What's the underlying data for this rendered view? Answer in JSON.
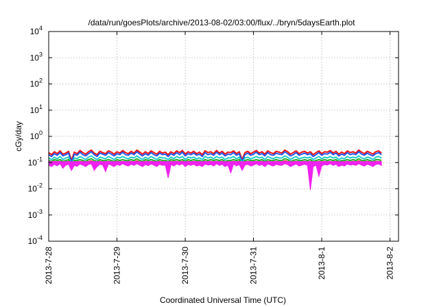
{
  "chart_data": {
    "type": "area",
    "title": "/data/run/goesPlots/archive/2013-08-02/03:00/flux/../bryn/5daysEarth.plot",
    "xlabel": "Coordinated Universal Time (UTC)",
    "ylabel": "cGy/day",
    "y_scale": "log",
    "ylim": [
      0.0001,
      10000
    ],
    "xlim": [
      "2013-07-28T00:00",
      "2013-08-02T03:00"
    ],
    "y_ticks": [
      {
        "value": 0.0001,
        "base": "10",
        "exp": "-4"
      },
      {
        "value": 0.001,
        "base": "10",
        "exp": "-3"
      },
      {
        "value": 0.01,
        "base": "10",
        "exp": "-2"
      },
      {
        "value": 0.1,
        "base": "10",
        "exp": "-1"
      },
      {
        "value": 1,
        "base": "10",
        "exp": "0"
      },
      {
        "value": 10,
        "base": "10",
        "exp": "1"
      },
      {
        "value": 100,
        "base": "10",
        "exp": "2"
      },
      {
        "value": 1000,
        "base": "10",
        "exp": "3"
      },
      {
        "value": 10000,
        "base": "10",
        "exp": "4"
      }
    ],
    "x_ticks": [
      {
        "date": "2013-07-28T00:00",
        "label": "2013-7-28"
      },
      {
        "date": "2013-07-29T00:00",
        "label": "2013-7-29"
      },
      {
        "date": "2013-07-30T00:00",
        "label": "2013-7-30"
      },
      {
        "date": "2013-07-31T00:00",
        "label": "2013-7-31"
      },
      {
        "date": "2013-08-01T00:00",
        "label": "2013-8-1"
      },
      {
        "date": "2013-08-02T00:00",
        "label": "2013-8-2"
      }
    ],
    "grid": true,
    "legend": "none",
    "sample_interval_hours": 1,
    "series": [
      {
        "color": "#ee1111",
        "fill": false,
        "values": [
          0.24,
          0.2,
          0.26,
          0.22,
          0.28,
          0.21,
          0.23,
          0.27,
          0.12,
          0.25,
          0.22,
          0.29,
          0.24,
          0.21,
          0.26,
          0.3,
          0.23,
          0.2,
          0.27,
          0.24,
          0.22,
          0.28,
          0.25,
          0.21,
          0.26,
          0.23,
          0.29,
          0.24,
          0.22,
          0.27,
          0.23,
          0.3,
          0.25,
          0.21,
          0.26,
          0.22,
          0.28,
          0.24,
          0.21,
          0.27,
          0.23,
          0.25,
          0.2,
          0.26,
          0.22,
          0.28,
          0.24,
          0.29,
          0.21,
          0.26,
          0.23,
          0.27,
          0.22,
          0.25,
          0.2,
          0.28,
          0.24,
          0.26,
          0.22,
          0.29,
          0.23,
          0.27,
          0.21,
          0.25,
          0.24,
          0.28,
          0.22,
          0.26,
          0.13,
          0.24,
          0.27,
          0.22,
          0.25,
          0.29,
          0.23,
          0.26,
          0.21,
          0.28,
          0.24,
          0.22,
          0.27,
          0.25,
          0.23,
          0.3,
          0.26,
          0.21,
          0.24,
          0.28,
          0.22,
          0.25,
          0.27,
          0.23,
          0.26,
          0.2,
          0.24,
          0.28,
          0.22,
          0.26,
          0.25,
          0.29,
          0.23,
          0.27,
          0.21,
          0.25,
          0.22,
          0.28,
          0.24,
          0.26,
          0.23,
          0.3,
          0.25,
          0.22,
          0.27,
          0.24,
          0.21,
          0.26,
          0.28,
          0.23
        ]
      },
      {
        "color": "#2255ee",
        "fill": false,
        "values": [
          0.2,
          0.17,
          0.22,
          0.19,
          0.24,
          0.18,
          0.2,
          0.23,
          0.1,
          0.21,
          0.19,
          0.25,
          0.2,
          0.18,
          0.22,
          0.26,
          0.2,
          0.17,
          0.23,
          0.21,
          0.19,
          0.24,
          0.21,
          0.18,
          0.22,
          0.2,
          0.25,
          0.2,
          0.19,
          0.23,
          0.2,
          0.26,
          0.21,
          0.18,
          0.22,
          0.19,
          0.24,
          0.2,
          0.18,
          0.23,
          0.2,
          0.21,
          0.17,
          0.22,
          0.19,
          0.24,
          0.2,
          0.25,
          0.18,
          0.22,
          0.2,
          0.23,
          0.19,
          0.21,
          0.17,
          0.24,
          0.2,
          0.22,
          0.19,
          0.25,
          0.2,
          0.23,
          0.18,
          0.21,
          0.2,
          0.24,
          0.19,
          0.22,
          0.11,
          0.2,
          0.23,
          0.19,
          0.21,
          0.25,
          0.2,
          0.22,
          0.18,
          0.24,
          0.2,
          0.19,
          0.23,
          0.21,
          0.2,
          0.26,
          0.22,
          0.18,
          0.2,
          0.24,
          0.19,
          0.21,
          0.23,
          0.2,
          0.22,
          0.17,
          0.2,
          0.24,
          0.19,
          0.22,
          0.21,
          0.25,
          0.2,
          0.23,
          0.18,
          0.21,
          0.19,
          0.24,
          0.2,
          0.22,
          0.2,
          0.26,
          0.21,
          0.19,
          0.23,
          0.2,
          0.18,
          0.22,
          0.24,
          0.2
        ]
      },
      {
        "color": "#22cccc",
        "fill": false,
        "values": [
          0.15,
          0.13,
          0.16,
          0.14,
          0.17,
          0.13,
          0.15,
          0.16,
          0.09,
          0.15,
          0.14,
          0.17,
          0.15,
          0.13,
          0.16,
          0.18,
          0.15,
          0.13,
          0.16,
          0.15,
          0.14,
          0.17,
          0.15,
          0.13,
          0.16,
          0.15,
          0.17,
          0.15,
          0.14,
          0.16,
          0.15,
          0.18,
          0.15,
          0.13,
          0.16,
          0.14,
          0.17,
          0.15,
          0.13,
          0.16,
          0.15,
          0.15,
          0.13,
          0.16,
          0.14,
          0.17,
          0.15,
          0.17,
          0.13,
          0.16,
          0.15,
          0.16,
          0.14,
          0.15,
          0.13,
          0.17,
          0.15,
          0.16,
          0.14,
          0.17,
          0.15,
          0.16,
          0.13,
          0.15,
          0.15,
          0.17,
          0.14,
          0.16,
          0.1,
          0.15,
          0.16,
          0.14,
          0.15,
          0.17,
          0.15,
          0.16,
          0.13,
          0.17,
          0.15,
          0.14,
          0.16,
          0.15,
          0.15,
          0.18,
          0.16,
          0.13,
          0.15,
          0.17,
          0.14,
          0.15,
          0.16,
          0.15,
          0.16,
          0.13,
          0.15,
          0.17,
          0.14,
          0.16,
          0.15,
          0.17,
          0.15,
          0.16,
          0.13,
          0.15,
          0.14,
          0.17,
          0.15,
          0.16,
          0.15,
          0.18,
          0.15,
          0.14,
          0.16,
          0.15,
          0.13,
          0.16,
          0.17,
          0.15
        ]
      },
      {
        "color": "#22aa22",
        "fill": false,
        "values": [
          0.12,
          0.11,
          0.13,
          0.12,
          0.13,
          0.11,
          0.12,
          0.13,
          0.08,
          0.12,
          0.12,
          0.13,
          0.12,
          0.11,
          0.13,
          0.14,
          0.12,
          0.11,
          0.13,
          0.12,
          0.12,
          0.13,
          0.12,
          0.11,
          0.13,
          0.12,
          0.13,
          0.12,
          0.12,
          0.13,
          0.12,
          0.14,
          0.12,
          0.11,
          0.13,
          0.12,
          0.13,
          0.12,
          0.11,
          0.13,
          0.12,
          0.12,
          0.11,
          0.13,
          0.12,
          0.13,
          0.12,
          0.13,
          0.11,
          0.13,
          0.12,
          0.13,
          0.12,
          0.12,
          0.11,
          0.13,
          0.12,
          0.13,
          0.12,
          0.13,
          0.12,
          0.13,
          0.11,
          0.12,
          0.12,
          0.13,
          0.12,
          0.13,
          0.09,
          0.12,
          0.13,
          0.12,
          0.12,
          0.13,
          0.12,
          0.13,
          0.11,
          0.13,
          0.12,
          0.12,
          0.13,
          0.12,
          0.12,
          0.14,
          0.13,
          0.11,
          0.12,
          0.13,
          0.12,
          0.12,
          0.13,
          0.12,
          0.13,
          0.11,
          0.12,
          0.13,
          0.12,
          0.13,
          0.12,
          0.13,
          0.12,
          0.13,
          0.11,
          0.12,
          0.12,
          0.13,
          0.12,
          0.13,
          0.12,
          0.14,
          0.12,
          0.12,
          0.13,
          0.12,
          0.11,
          0.13,
          0.13,
          0.12
        ]
      },
      {
        "color": "#d03030",
        "fill": false,
        "values": [
          0.105,
          0.1,
          0.11,
          0.105,
          0.11,
          0.1,
          0.105,
          0.11,
          0.075,
          0.105,
          0.105,
          0.11,
          0.105,
          0.1,
          0.11,
          0.115,
          0.105,
          0.1,
          0.11,
          0.105,
          0.105,
          0.11,
          0.105,
          0.1,
          0.11,
          0.105,
          0.11,
          0.105,
          0.105,
          0.11,
          0.105,
          0.115,
          0.105,
          0.1,
          0.11,
          0.105,
          0.11,
          0.105,
          0.1,
          0.11,
          0.105,
          0.105,
          0.1,
          0.11,
          0.105,
          0.11,
          0.105,
          0.11,
          0.1,
          0.11,
          0.105,
          0.11,
          0.105,
          0.105,
          0.1,
          0.11,
          0.105,
          0.11,
          0.105,
          0.11,
          0.105,
          0.11,
          0.1,
          0.105,
          0.105,
          0.11,
          0.105,
          0.11,
          0.08,
          0.105,
          0.11,
          0.105,
          0.105,
          0.11,
          0.105,
          0.11,
          0.1,
          0.11,
          0.105,
          0.105,
          0.11,
          0.105,
          0.105,
          0.115,
          0.11,
          0.1,
          0.105,
          0.11,
          0.105,
          0.105,
          0.11,
          0.105,
          0.11,
          0.1,
          0.105,
          0.11,
          0.105,
          0.11,
          0.105,
          0.11,
          0.105,
          0.11,
          0.1,
          0.105,
          0.105,
          0.11,
          0.105,
          0.11,
          0.105,
          0.115,
          0.105,
          0.105,
          0.11,
          0.105,
          0.1,
          0.11,
          0.11,
          0.105
        ]
      },
      {
        "color": "#ee22ee",
        "fill": true,
        "values": [
          0.08,
          0.07,
          0.085,
          0.075,
          0.09,
          0.06,
          0.08,
          0.085,
          0.05,
          0.078,
          0.072,
          0.088,
          0.08,
          0.07,
          0.084,
          0.09,
          0.05,
          0.07,
          0.085,
          0.08,
          0.045,
          0.088,
          0.08,
          0.07,
          0.084,
          0.078,
          0.09,
          0.08,
          0.074,
          0.086,
          0.078,
          0.09,
          0.08,
          0.07,
          0.084,
          0.076,
          0.088,
          0.08,
          0.07,
          0.086,
          0.078,
          0.08,
          0.026,
          0.084,
          0.074,
          0.088,
          0.08,
          0.09,
          0.07,
          0.084,
          0.078,
          0.086,
          0.074,
          0.08,
          0.07,
          0.088,
          0.08,
          0.084,
          0.074,
          0.09,
          0.078,
          0.086,
          0.07,
          0.08,
          0.04,
          0.088,
          0.074,
          0.084,
          0.05,
          0.08,
          0.086,
          0.074,
          0.08,
          0.09,
          0.078,
          0.084,
          0.07,
          0.088,
          0.08,
          0.074,
          0.086,
          0.08,
          0.078,
          0.09,
          0.084,
          0.07,
          0.08,
          0.088,
          0.074,
          0.08,
          0.086,
          0.078,
          0.009,
          0.07,
          0.08,
          0.03,
          0.074,
          0.084,
          0.08,
          0.09,
          0.078,
          0.086,
          0.07,
          0.08,
          0.074,
          0.088,
          0.08,
          0.084,
          0.078,
          0.09,
          0.08,
          0.074,
          0.086,
          0.08,
          0.07,
          0.084,
          0.088,
          0.078
        ]
      }
    ]
  }
}
